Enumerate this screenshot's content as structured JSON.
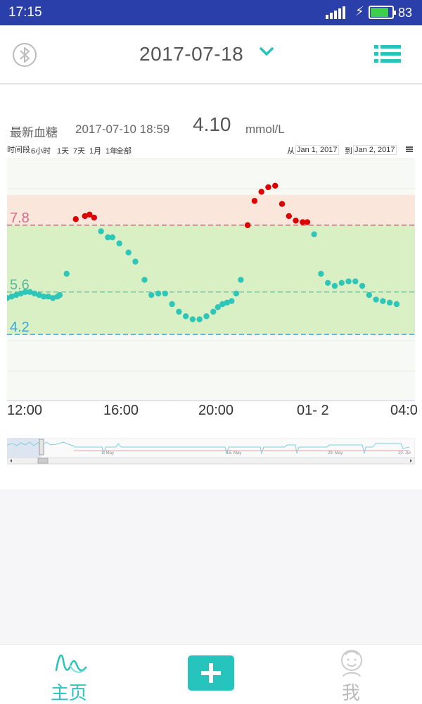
{
  "status_bar": {
    "time": "17:15",
    "battery_percent": "83",
    "battery_level": 0.83
  },
  "header": {
    "date": "2017-07-18",
    "left_icon": "bluetooth-icon",
    "dropdown_icon": "chevron-down-icon",
    "right_icon": "list-menu-icon"
  },
  "latest": {
    "label": "最新血糖",
    "time": "2017-07-10 18:59",
    "value": "4.10",
    "unit": "mmol/L"
  },
  "range_selector": {
    "label": "时间段",
    "options": [
      "6小时",
      "1天",
      "7天",
      "1月",
      "1年",
      "全部"
    ],
    "from_label": "从",
    "from_date": "Jan 1, 2017",
    "to_label": "到",
    "to_date": "Jan 2, 2017"
  },
  "colors": {
    "accent": "#27c3bd",
    "high_point": "#dd0000",
    "normal_point": "#2ec6b8",
    "high_band": "#fbe6dc",
    "target_band": "#d9f0c4",
    "upper_line": "#d46a8a",
    "lower_line": "#3aa6dd"
  },
  "chart_data": {
    "type": "scatter",
    "x_labels": [
      "12:00",
      "16:00",
      "20:00",
      "01- 2",
      "04:0"
    ],
    "y_threshold_labels": [
      "7.8",
      "5.6",
      "4.2"
    ],
    "thresholds": {
      "high": 7.8,
      "target_upper": 5.6,
      "low": 4.2
    },
    "ylim": [
      2.0,
      10.0
    ],
    "xlim_hours": [
      11.0,
      28.8
    ],
    "grid": true,
    "high_band": [
      7.8,
      8.8
    ],
    "target_band": [
      4.2,
      7.8
    ],
    "points": [
      [
        11.0,
        5.4
      ],
      [
        11.2,
        5.45
      ],
      [
        11.4,
        5.5
      ],
      [
        11.6,
        5.55
      ],
      [
        11.8,
        5.6
      ],
      [
        12.0,
        5.6
      ],
      [
        12.2,
        5.55
      ],
      [
        12.4,
        5.5
      ],
      [
        12.6,
        5.45
      ],
      [
        12.8,
        5.45
      ],
      [
        13.0,
        5.4
      ],
      [
        13.2,
        5.45
      ],
      [
        13.3,
        5.5
      ],
      [
        13.6,
        6.2
      ],
      [
        14.0,
        8.0
      ],
      [
        14.4,
        8.1
      ],
      [
        14.6,
        8.15
      ],
      [
        14.8,
        8.05
      ],
      [
        15.1,
        7.6
      ],
      [
        15.4,
        7.4
      ],
      [
        15.6,
        7.4
      ],
      [
        15.9,
        7.2
      ],
      [
        16.3,
        6.9
      ],
      [
        16.6,
        6.6
      ],
      [
        17.0,
        6.0
      ],
      [
        17.3,
        5.5
      ],
      [
        17.6,
        5.55
      ],
      [
        17.9,
        5.55
      ],
      [
        18.2,
        5.2
      ],
      [
        18.5,
        4.95
      ],
      [
        18.8,
        4.8
      ],
      [
        19.1,
        4.7
      ],
      [
        19.4,
        4.7
      ],
      [
        19.7,
        4.8
      ],
      [
        20.0,
        4.95
      ],
      [
        20.2,
        5.1
      ],
      [
        20.4,
        5.2
      ],
      [
        20.6,
        5.25
      ],
      [
        20.8,
        5.3
      ],
      [
        21.0,
        5.55
      ],
      [
        21.2,
        6.0
      ],
      [
        21.5,
        7.8
      ],
      [
        21.8,
        8.6
      ],
      [
        22.1,
        8.9
      ],
      [
        22.4,
        9.05
      ],
      [
        22.7,
        9.1
      ],
      [
        23.0,
        8.5
      ],
      [
        23.3,
        8.1
      ],
      [
        23.6,
        7.95
      ],
      [
        23.9,
        7.9
      ],
      [
        24.1,
        7.9
      ],
      [
        24.4,
        7.5
      ],
      [
        24.7,
        6.2
      ],
      [
        25.0,
        5.9
      ],
      [
        25.3,
        5.8
      ],
      [
        25.6,
        5.9
      ],
      [
        25.9,
        5.95
      ],
      [
        26.2,
        5.95
      ],
      [
        26.5,
        5.8
      ],
      [
        26.8,
        5.5
      ],
      [
        27.1,
        5.35
      ],
      [
        27.4,
        5.3
      ],
      [
        27.7,
        5.25
      ],
      [
        28.0,
        5.2
      ]
    ]
  },
  "navigator": {
    "labels": [
      "1. May",
      "15. May",
      "29. May",
      "10. Jul"
    ]
  },
  "bottom_nav": {
    "home_label": "主页",
    "home_icon": "glucose-wave-icon",
    "add_icon": "plus-icon",
    "me_label": "我",
    "me_icon": "smiley-person-icon"
  }
}
